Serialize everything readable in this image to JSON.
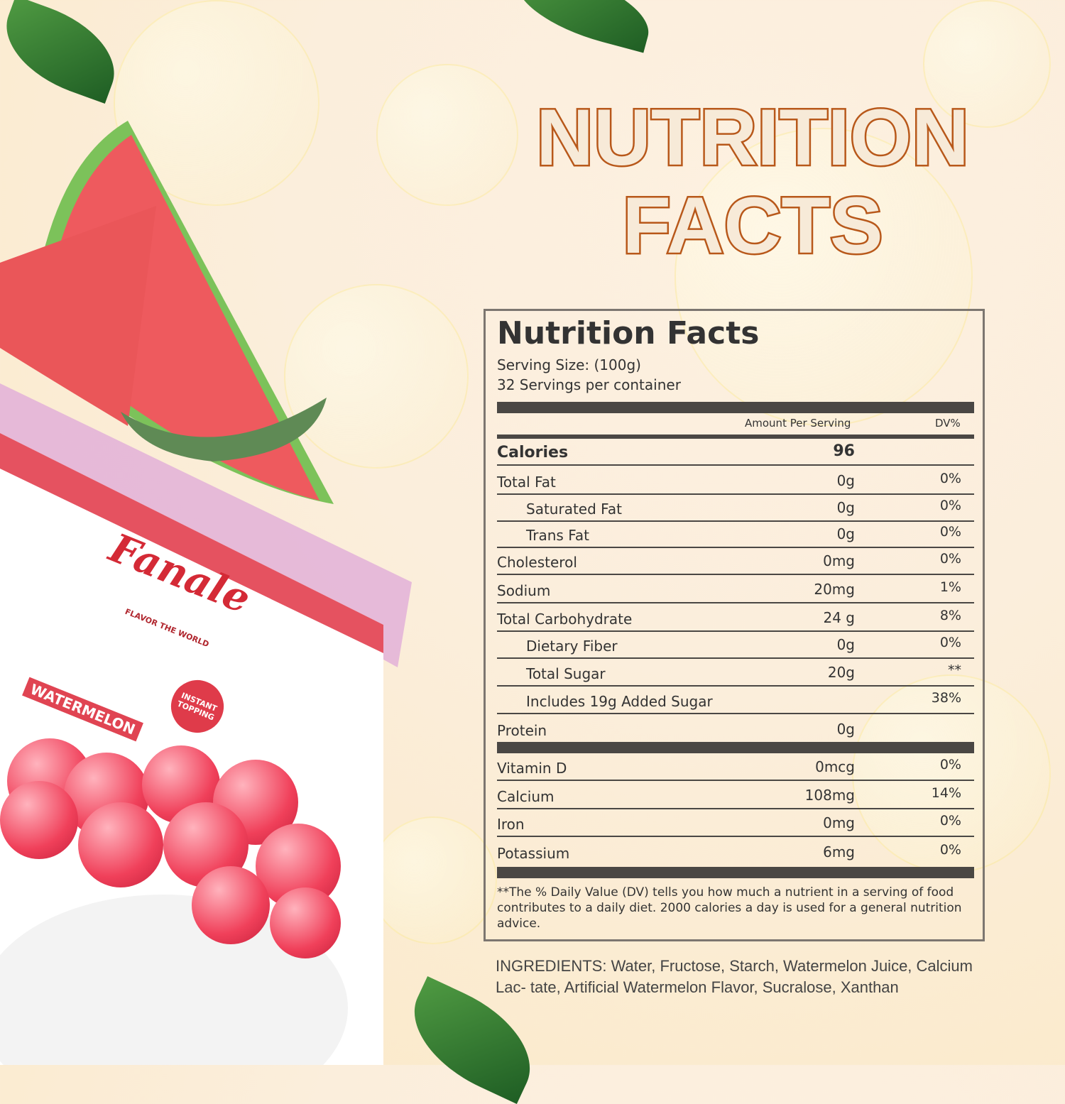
{
  "headline": {
    "line1": "NUTRITION",
    "line2": "FACTS"
  },
  "label": {
    "title": "Nutrition Facts",
    "serving_size": "Serving Size:  (100g)",
    "servings": "32 Servings per container",
    "amount_header": "Amount Per Serving",
    "dv_header": "DV%",
    "rows": [
      {
        "name": "Calories",
        "amount": "96",
        "dv": ""
      },
      {
        "name": "Total Fat",
        "amount": "0g",
        "dv": "0%"
      },
      {
        "name": "Saturated Fat",
        "amount": "0g",
        "dv": "0%"
      },
      {
        "name": "Trans Fat",
        "amount": "0g",
        "dv": "0%"
      },
      {
        "name": "Cholesterol",
        "amount": "0mg",
        "dv": "0%"
      },
      {
        "name": "Sodium",
        "amount": "20mg",
        "dv": "1%"
      },
      {
        "name": "Total Carbohydrate",
        "amount": "24 g",
        "dv": "8%"
      },
      {
        "name": "Dietary Fiber",
        "amount": "0g",
        "dv": "0%"
      },
      {
        "name": "Total Sugar",
        "amount": "20g",
        "dv": "**"
      },
      {
        "name": "Includes 19g Added Sugar",
        "amount": "",
        "dv": "38%"
      },
      {
        "name": "Protein",
        "amount": "0g",
        "dv": ""
      },
      {
        "name": "Vitamin D",
        "amount": "0mcg",
        "dv": "0%"
      },
      {
        "name": "Calcium",
        "amount": "108mg",
        "dv": "14%"
      },
      {
        "name": "Iron",
        "amount": "0mg",
        "dv": "0%"
      },
      {
        "name": "Potassium",
        "amount": "6mg",
        "dv": "0%"
      }
    ],
    "footnote": "**The % Daily Value (DV) tells you how much a nutrient in a serving of food contributes to a daily diet. 2000 calories a  day is used for a general nutrition advice."
  },
  "ingredients": "INGREDIENTS: Water, Fructose, Starch, Watermelon Juice, Calcium Lac- tate, Artificial Watermelon Flavor, Sucralose, Xanthan",
  "product": {
    "brand": "Fanale",
    "tagline": "FLAVOR THE WORLD",
    "flavor": "WATERMELON",
    "badge": "INSTANT TOPPING"
  },
  "colors": {
    "title_stroke": "#b8581a",
    "label_text": "#333333",
    "bar": "#4a4744",
    "brand_red": "#d42a36"
  }
}
